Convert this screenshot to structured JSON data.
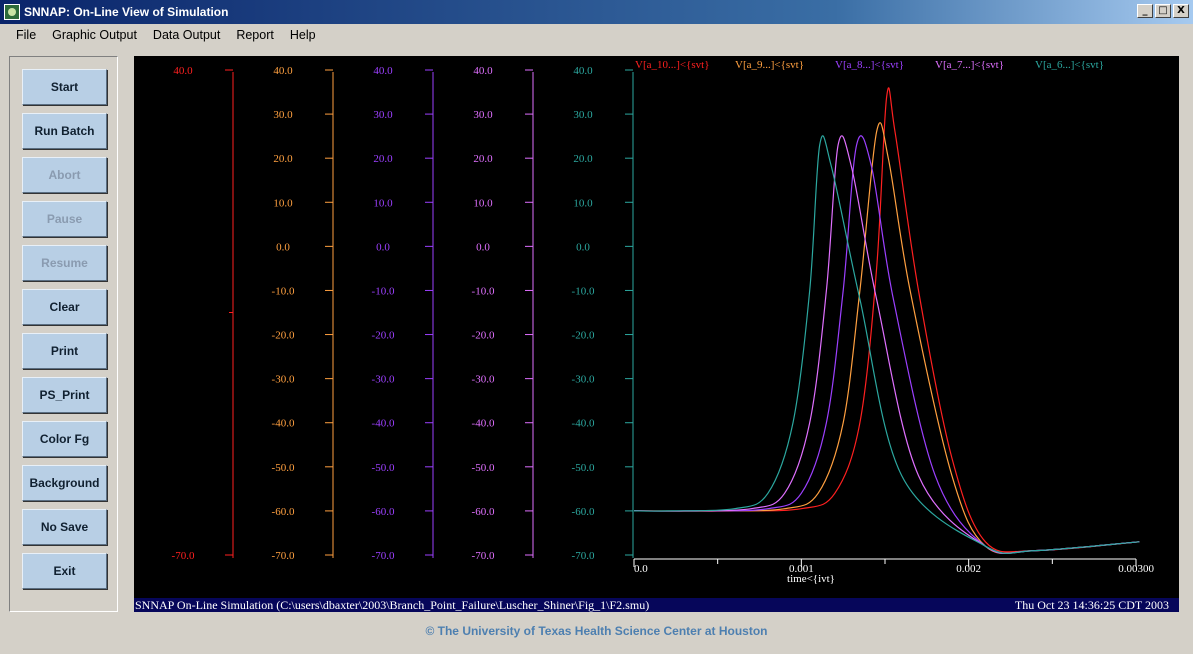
{
  "window": {
    "title": "SNNAP:  On-Line View of Simulation",
    "controls": {
      "minimize": "_",
      "maximize": "□",
      "close": "X"
    }
  },
  "menu": [
    "File",
    "Graphic Output",
    "Data Output",
    "Report",
    "Help"
  ],
  "buttons": [
    {
      "label": "Start",
      "enabled": true
    },
    {
      "label": "Run Batch",
      "enabled": true
    },
    {
      "label": "Abort",
      "enabled": false
    },
    {
      "label": "Pause",
      "enabled": false
    },
    {
      "label": "Resume",
      "enabled": false
    },
    {
      "label": "Clear",
      "enabled": true
    },
    {
      "label": "Print",
      "enabled": true
    },
    {
      "label": "PS_Print",
      "enabled": true
    },
    {
      "label": "Color Fg",
      "enabled": true
    },
    {
      "label": "Background",
      "enabled": true
    },
    {
      "label": "No Save",
      "enabled": true
    },
    {
      "label": "Exit",
      "enabled": true
    }
  ],
  "chart_data": {
    "type": "line",
    "xlabel": "time<{ivt}",
    "x_ticks": [
      {
        "value": 0.0,
        "label": "0.0"
      },
      {
        "value": 0.001,
        "label": "0.001"
      },
      {
        "value": 0.002,
        "label": "0.002"
      },
      {
        "value": 0.003,
        "label": "0.00300"
      }
    ],
    "xlim": [
      0,
      0.003
    ],
    "background": "#000000",
    "axes": [
      {
        "color": "#ff2020",
        "ylim": [
          -70,
          40
        ],
        "tick_labels": [
          "40.0",
          "-70.0"
        ]
      },
      {
        "color": "#ffa040",
        "ylim": [
          -70,
          40
        ],
        "tick_labels": [
          "40.0",
          "30.0",
          "20.0",
          "10.0",
          "0.0",
          "-10.0",
          "-20.0",
          "-30.0",
          "-40.0",
          "-50.0",
          "-60.0",
          "-70.0"
        ]
      },
      {
        "color": "#9c40ff",
        "ylim": [
          -70,
          40
        ],
        "tick_labels": [
          "40.0",
          "30.0",
          "20.0",
          "10.0",
          "0.0",
          "-10.0",
          "-20.0",
          "-30.0",
          "-40.0",
          "-50.0",
          "-60.0",
          "-70.0"
        ]
      },
      {
        "color": "#e070ff",
        "ylim": [
          -70,
          40
        ],
        "tick_labels": [
          "40.0",
          "30.0",
          "20.0",
          "10.0",
          "0.0",
          "-10.0",
          "-20.0",
          "-30.0",
          "-40.0",
          "-50.0",
          "-60.0",
          "-70.0"
        ]
      },
      {
        "color": "#2ca8a0",
        "ylim": [
          -70,
          40
        ],
        "tick_labels": [
          "40.0",
          "30.0",
          "20.0",
          "10.0",
          "0.0",
          "-10.0",
          "-20.0",
          "-30.0",
          "-40.0",
          "-50.0",
          "-60.0",
          "-70.0"
        ]
      }
    ],
    "series": [
      {
        "name": "V[a_10...]<{svt}",
        "color": "#ff2020",
        "x": [
          0.0,
          0.0006,
          0.001,
          0.0012,
          0.00135,
          0.00145,
          0.00151,
          0.00156,
          0.0017,
          0.0019,
          0.0021,
          0.0024,
          0.00302
        ],
        "y": [
          -60,
          -60,
          -59.5,
          -56,
          -40,
          -5,
          34,
          26,
          -10,
          -48,
          -67,
          -69,
          -67
        ]
      },
      {
        "name": "V[a_9...]<{svt}",
        "color": "#ffa040",
        "x": [
          0.0,
          0.0005,
          0.0009,
          0.0011,
          0.00125,
          0.00135,
          0.00145,
          0.00152,
          0.00165,
          0.0019,
          0.0021,
          0.0024,
          0.00302
        ],
        "y": [
          -60,
          -60,
          -59.5,
          -56,
          -40,
          -10,
          26,
          20,
          -10,
          -52,
          -68,
          -69,
          -67
        ]
      },
      {
        "name": "V[a_8...]<{svt}",
        "color": "#9c40ff",
        "x": [
          0.0,
          0.0004,
          0.0008,
          0.001,
          0.00115,
          0.00125,
          0.00133,
          0.00142,
          0.00155,
          0.0018,
          0.0021,
          0.0024,
          0.00302
        ],
        "y": [
          -60,
          -60,
          -59.5,
          -56,
          -40,
          -10,
          23,
          18,
          -12,
          -52,
          -68,
          -69,
          -67
        ]
      },
      {
        "name": "V[a_7...]<{svt}",
        "color": "#e070ff",
        "x": [
          0.0,
          0.0003,
          0.0007,
          0.0009,
          0.00105,
          0.00115,
          0.00122,
          0.0013,
          0.00145,
          0.0017,
          0.0021,
          0.0024,
          0.00302
        ],
        "y": [
          -60,
          -60,
          -59.5,
          -56,
          -40,
          -10,
          23,
          18,
          -12,
          -52,
          -68,
          -69,
          -67
        ]
      },
      {
        "name": "V[a_6...]<{svt}",
        "color": "#2ca8a0",
        "x": [
          0.0,
          0.0002,
          0.0006,
          0.0008,
          0.00095,
          0.00105,
          0.00111,
          0.00118,
          0.00135,
          0.0016,
          0.0021,
          0.0024,
          0.00302
        ],
        "y": [
          -60,
          -60,
          -59.5,
          -56,
          -40,
          -10,
          23,
          18,
          -12,
          -52,
          -68,
          -69,
          -67
        ]
      }
    ]
  },
  "status": {
    "left": "SNNAP On-Line Simulation (C:\\users\\dbaxter\\2003\\Branch_Point_Failure\\Luscher_Shiner\\Fig_1\\F2.smu)",
    "right": "Thu Oct 23 14:36:25 CDT 2003"
  },
  "footer": {
    "copyright": "© The University of Texas Health Science Center at Houston"
  }
}
